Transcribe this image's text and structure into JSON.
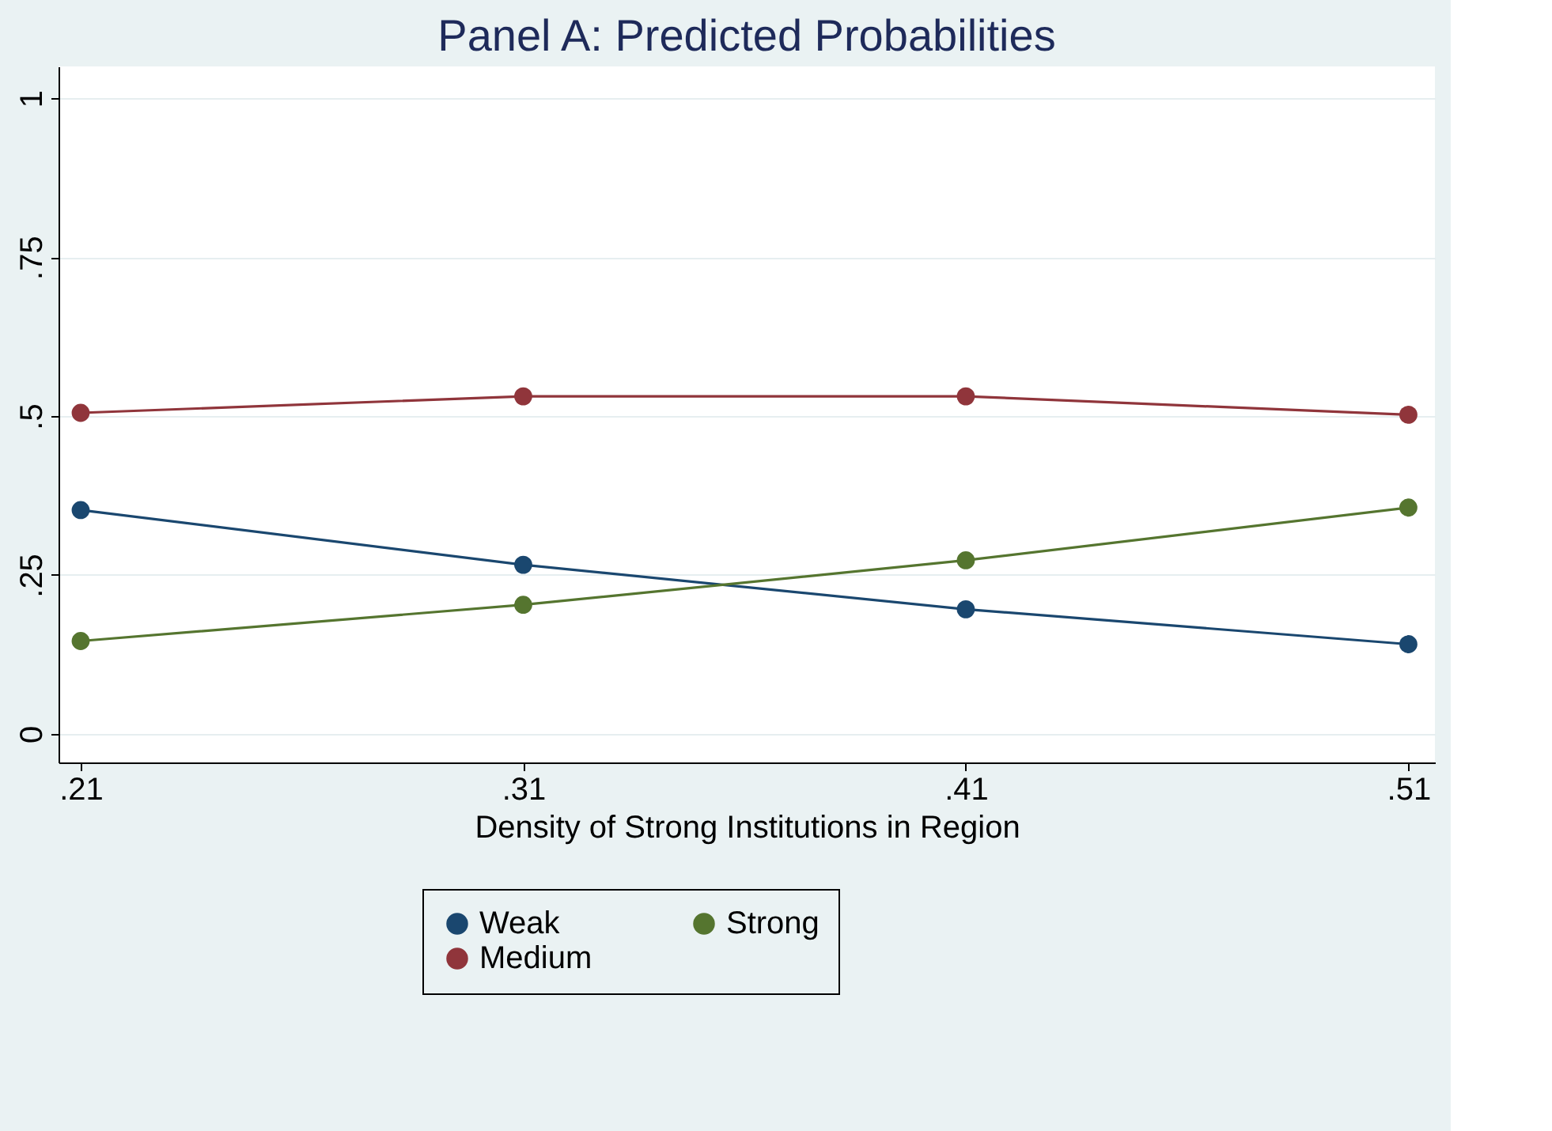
{
  "chart_data": {
    "type": "line",
    "title": "Panel A: Predicted Probabilities",
    "xlabel": "Density of Strong Institutions in Region",
    "x": [
      0.21,
      0.31,
      0.41,
      0.51
    ],
    "series": [
      {
        "name": "Weak",
        "color": "#1a476f",
        "values": [
          0.352,
          0.266,
          0.196,
          0.141
        ]
      },
      {
        "name": "Medium",
        "color": "#90353b",
        "values": [
          0.505,
          0.531,
          0.531,
          0.502
        ]
      },
      {
        "name": "Strong",
        "color": "#55752f",
        "values": [
          0.146,
          0.203,
          0.273,
          0.356
        ]
      }
    ],
    "xlim": [
      0.205,
      0.516
    ],
    "ylim": [
      -0.045,
      1.05
    ],
    "xticks": [
      {
        "value": 0.21,
        "label": ".21"
      },
      {
        "value": 0.31,
        "label": ".31"
      },
      {
        "value": 0.41,
        "label": ".41"
      },
      {
        "value": 0.51,
        "label": ".51"
      }
    ],
    "yticks": [
      0,
      {
        "value": 0.25,
        "label": ".25"
      },
      {
        "value": 0.5,
        "label": ".5"
      },
      {
        "value": 0.75,
        "label": ".75"
      },
      1
    ],
    "grid": "y",
    "legend": "bottom",
    "marker": "circle",
    "line_style": "solid"
  }
}
